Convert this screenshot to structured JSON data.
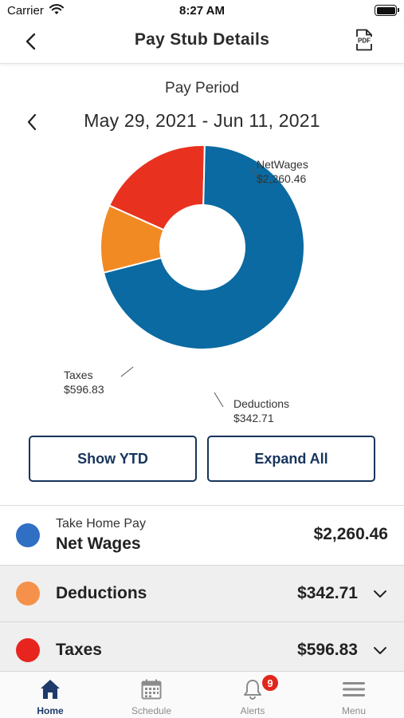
{
  "status_bar": {
    "carrier": "Carrier",
    "time": "8:27 AM"
  },
  "nav": {
    "title": "Pay Stub Details",
    "pdf_icon": "pdf-file-icon",
    "back_icon": "chevron-left-icon"
  },
  "period": {
    "label": "Pay Period",
    "range": "May 29, 2021 - Jun 11, 2021"
  },
  "chart_data": {
    "type": "pie",
    "style": "donut",
    "slices": [
      {
        "name": "NetWages",
        "value": 2260.46,
        "label": "$2,260.46",
        "color": "#0a6aa1"
      },
      {
        "name": "Deductions",
        "value": 342.71,
        "label": "$342.71",
        "color": "#f28a24"
      },
      {
        "name": "Taxes",
        "value": 596.83,
        "label": "$596.83",
        "color": "#e8321f"
      }
    ]
  },
  "buttons": {
    "show_ytd": "Show YTD",
    "expand_all": "Expand All"
  },
  "rows": {
    "net_wages": {
      "sub_label": "Take Home Pay",
      "label": "Net Wages",
      "amount": "$2,260.46",
      "color": "#2f6fc4"
    },
    "deductions": {
      "label": "Deductions",
      "amount": "$342.71",
      "color": "#f5914a"
    },
    "taxes": {
      "label": "Taxes",
      "amount": "$596.83",
      "color": "#e8241f"
    }
  },
  "tabs": [
    {
      "label": "Home",
      "icon": "home-icon",
      "active": true
    },
    {
      "label": "Schedule",
      "icon": "calendar-icon"
    },
    {
      "label": "Alerts",
      "icon": "bell-icon",
      "badge": "9"
    },
    {
      "label": "Menu",
      "icon": "hamburger-menu-icon"
    }
  ],
  "colors": {
    "navy": "#17345c",
    "active_tab": "#1d3a6b",
    "badge": "#e1261c"
  }
}
